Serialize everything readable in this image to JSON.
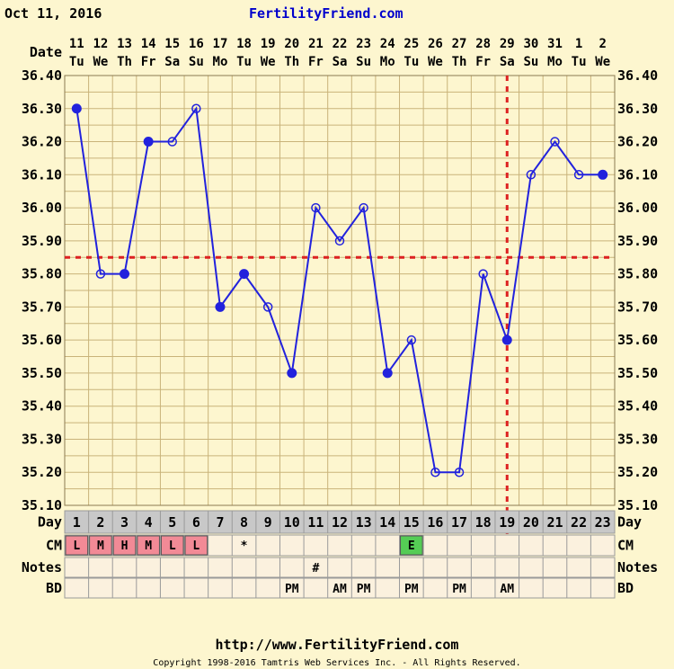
{
  "header": {
    "date": "Oct 11, 2016",
    "site": "FertilityFriend.com"
  },
  "footer": {
    "url": "http://www.FertilityFriend.com",
    "copyright": "Copyright 1998-2016 Tamtris Web Services Inc. - All Rights Reserved."
  },
  "labels": {
    "date": "Date",
    "day": "Day",
    "cm": "CM",
    "notes": "Notes",
    "bd": "BD"
  },
  "colors": {
    "line": "#2222DD",
    "grid": "#C9B37A",
    "coverline": "#DD2222",
    "cm_pink": "#F28A96",
    "cm_green": "#55CC55",
    "row_bg": "#FBF1DE",
    "day_row_bg": "#C8C8C8"
  },
  "chart_data": {
    "type": "line",
    "title": "",
    "xlabel": "Day",
    "ylabel": "",
    "ylim": [
      35.1,
      36.4
    ],
    "yticks": [
      "36.40",
      "36.30",
      "36.20",
      "36.10",
      "36.00",
      "35.90",
      "35.80",
      "35.70",
      "35.60",
      "35.50",
      "35.40",
      "35.30",
      "35.20",
      "35.10"
    ],
    "dates": [
      "11",
      "12",
      "13",
      "14",
      "15",
      "16",
      "17",
      "18",
      "19",
      "20",
      "21",
      "22",
      "23",
      "24",
      "25",
      "26",
      "27",
      "28",
      "29",
      "30",
      "31",
      "1",
      "2"
    ],
    "weekdays": [
      "Tu",
      "We",
      "Th",
      "Fr",
      "Sa",
      "Su",
      "Mo",
      "Tu",
      "We",
      "Th",
      "Fr",
      "Sa",
      "Su",
      "Mo",
      "Tu",
      "We",
      "Th",
      "Fr",
      "Sa",
      "Su",
      "Mo",
      "Tu",
      "We"
    ],
    "days": [
      "1",
      "2",
      "3",
      "4",
      "5",
      "6",
      "7",
      "8",
      "9",
      "10",
      "11",
      "12",
      "13",
      "14",
      "15",
      "16",
      "17",
      "18",
      "19",
      "20",
      "21",
      "22",
      "23"
    ],
    "series": [
      {
        "values": [
          36.3,
          35.8,
          35.8,
          36.2,
          36.2,
          36.3,
          35.7,
          35.8,
          35.7,
          35.5,
          36.0,
          35.9,
          36.0,
          35.5,
          35.6,
          35.2,
          35.2,
          35.8,
          35.6,
          36.1,
          36.2,
          36.1,
          36.1
        ],
        "filled": [
          true,
          false,
          true,
          true,
          false,
          false,
          true,
          true,
          false,
          true,
          false,
          false,
          false,
          true,
          false,
          false,
          false,
          false,
          true,
          false,
          false,
          false,
          true
        ]
      }
    ],
    "coverline": 35.85,
    "ovulation_day": 19,
    "cm": [
      "L",
      "M",
      "H",
      "M",
      "L",
      "L",
      "",
      "*",
      "",
      "",
      "",
      "",
      "",
      "",
      "E",
      "",
      "",
      "",
      "",
      "",
      "",
      "",
      ""
    ],
    "cm_colors": [
      "pink",
      "pink",
      "pink",
      "pink",
      "pink",
      "pink",
      "",
      "",
      "",
      "",
      "",
      "",
      "",
      "",
      "green",
      "",
      "",
      "",
      "",
      "",
      "",
      "",
      ""
    ],
    "notes": [
      "",
      "",
      "",
      "",
      "",
      "",
      "",
      "",
      "",
      "",
      "#",
      "",
      "",
      "",
      "",
      "",
      "",
      "",
      "",
      "",
      "",
      "",
      ""
    ],
    "bd": [
      "",
      "",
      "",
      "",
      "",
      "",
      "",
      "",
      "",
      "PM",
      "",
      "AM",
      "PM",
      "",
      "PM",
      "",
      "PM",
      "",
      "AM",
      "",
      "",
      "",
      ""
    ],
    "grid": true
  }
}
